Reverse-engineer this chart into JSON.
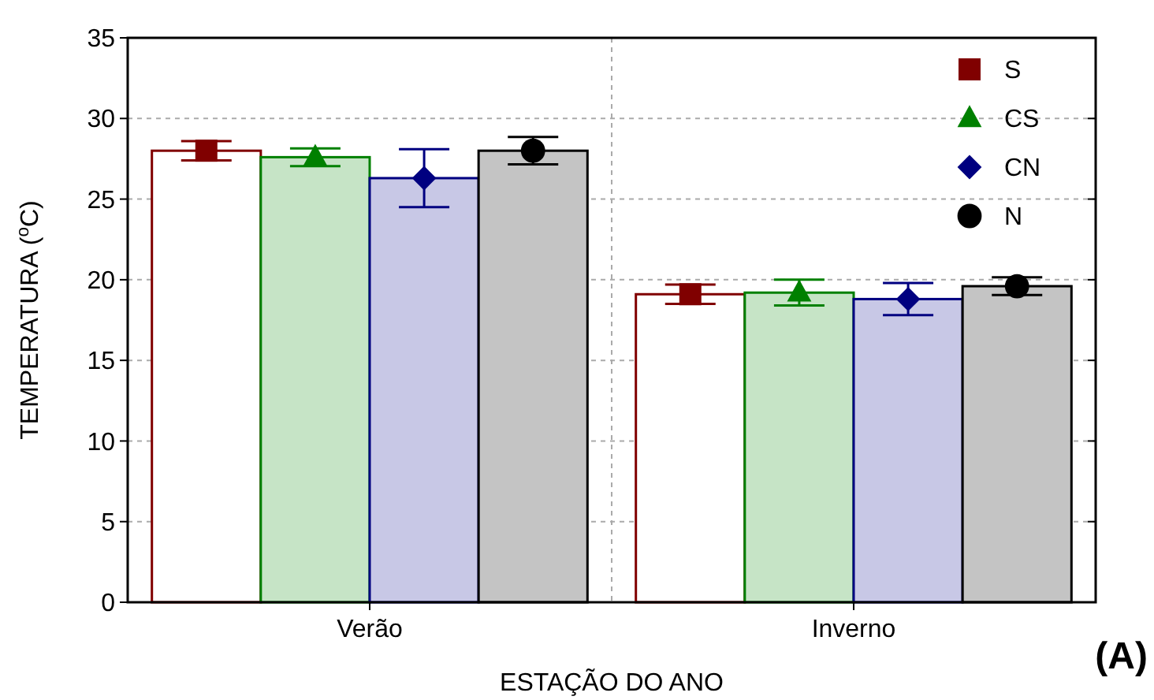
{
  "chart_data": {
    "type": "bar",
    "xlabel": "ESTAÇÃO DO ANO",
    "ylabel": "TEMPERATURA ($^{o}$C)",
    "categories": [
      "Verão",
      "Inverno"
    ],
    "series": [
      {
        "type": "bar",
        "color": "#ffffff",
        "values": [
          28.0,
          19.1
        ]
      },
      {
        "type": "bar",
        "color": "#c6e4c6",
        "values": [
          27.6,
          19.2
        ]
      },
      {
        "type": "bar",
        "color": "#c8c8e6",
        "values": [
          26.3,
          18.8
        ]
      },
      {
        "type": "bar",
        "color": "#c4c4c4",
        "values": [
          28.0,
          19.6
        ]
      },
      {
        "type": "scatter",
        "name": "S",
        "color": "#800000",
        "marker": "square",
        "x": [
          "Verão",
          "Inverno"
        ],
        "values": [
          28.0,
          19.1
        ],
        "errors": [
          0.6,
          0.6
        ]
      },
      {
        "type": "scatter",
        "name": "CS",
        "color": "#008000",
        "marker": "triangle",
        "x": [
          "Verão",
          "Inverno"
        ],
        "values": [
          27.6,
          19.2
        ],
        "errors": [
          0.55,
          0.8
        ]
      },
      {
        "type": "scatter",
        "name": "CN",
        "color": "#000080",
        "marker": "diamond",
        "x": [
          "Verão",
          "Inverno"
        ],
        "values": [
          26.3,
          18.8
        ],
        "errors": [
          1.8,
          1.0
        ]
      },
      {
        "type": "scatter",
        "name": "N",
        "color": "#000000",
        "marker": "circle",
        "x": [
          "Verão",
          "Inverno"
        ],
        "values": [
          28.0,
          19.6
        ],
        "errors": [
          0.85,
          0.55
        ]
      }
    ],
    "ylim": [
      0,
      35
    ],
    "yticks": [
      0,
      5,
      10,
      15,
      20,
      25,
      30,
      35
    ],
    "grid": true,
    "legend": "top right",
    "annotations": [
      "(A)"
    ]
  }
}
